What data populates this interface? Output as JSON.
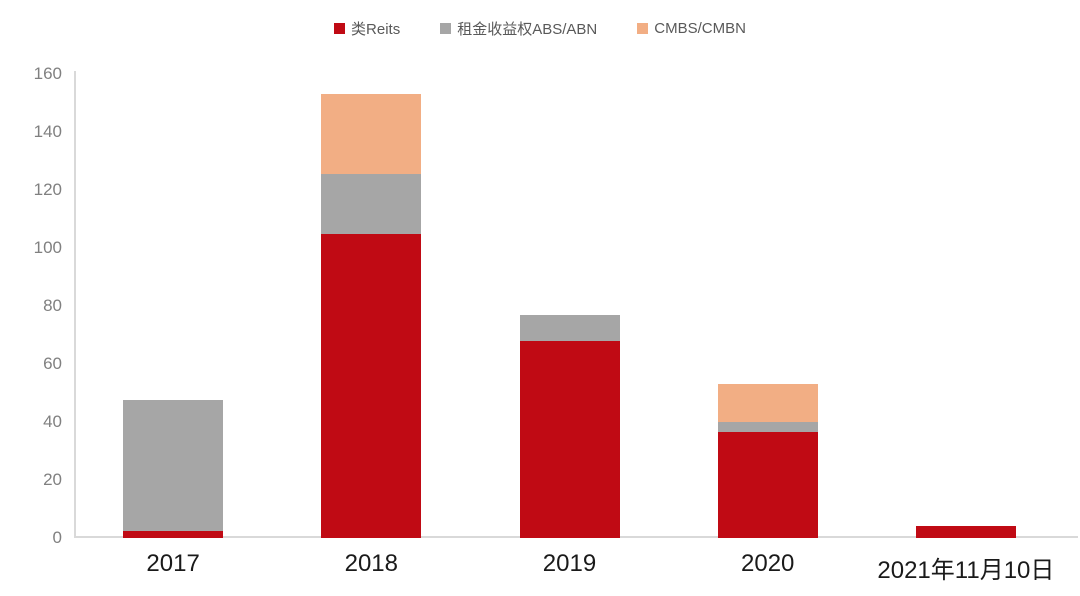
{
  "chart_data": {
    "type": "bar",
    "stacked": true,
    "title": "",
    "xlabel": "",
    "ylabel": "",
    "categories": [
      "2017",
      "2018",
      "2019",
      "2020",
      "2021年11月10日"
    ],
    "series": [
      {
        "name": "类Reits",
        "color": "#c00a14",
        "values": [
          2.5,
          105.0,
          68.0,
          36.5,
          4.0
        ]
      },
      {
        "name": "租金收益权ABS/ABN",
        "color": "#a6a6a6",
        "values": [
          45.0,
          20.5,
          9.0,
          3.5,
          0.0
        ]
      },
      {
        "name": "CMBS/CMBN",
        "color": "#f2ae84",
        "values": [
          0.0,
          27.5,
          0.0,
          13.0,
          0.0
        ]
      }
    ],
    "totals": [
      47.5,
      153.0,
      77.0,
      53.0,
      4.0
    ],
    "ylim": [
      0,
      160
    ],
    "y_ticks": [
      0,
      20,
      40,
      60,
      80,
      100,
      120,
      140,
      160
    ],
    "grid": false,
    "legend_position": "top-center"
  },
  "colors": {
    "background": "#ffffff",
    "axis_line": "#d9d9d9",
    "y_tick_label": "#808080",
    "x_tick_label": "#1a1a1a",
    "legend_label": "#595959"
  }
}
